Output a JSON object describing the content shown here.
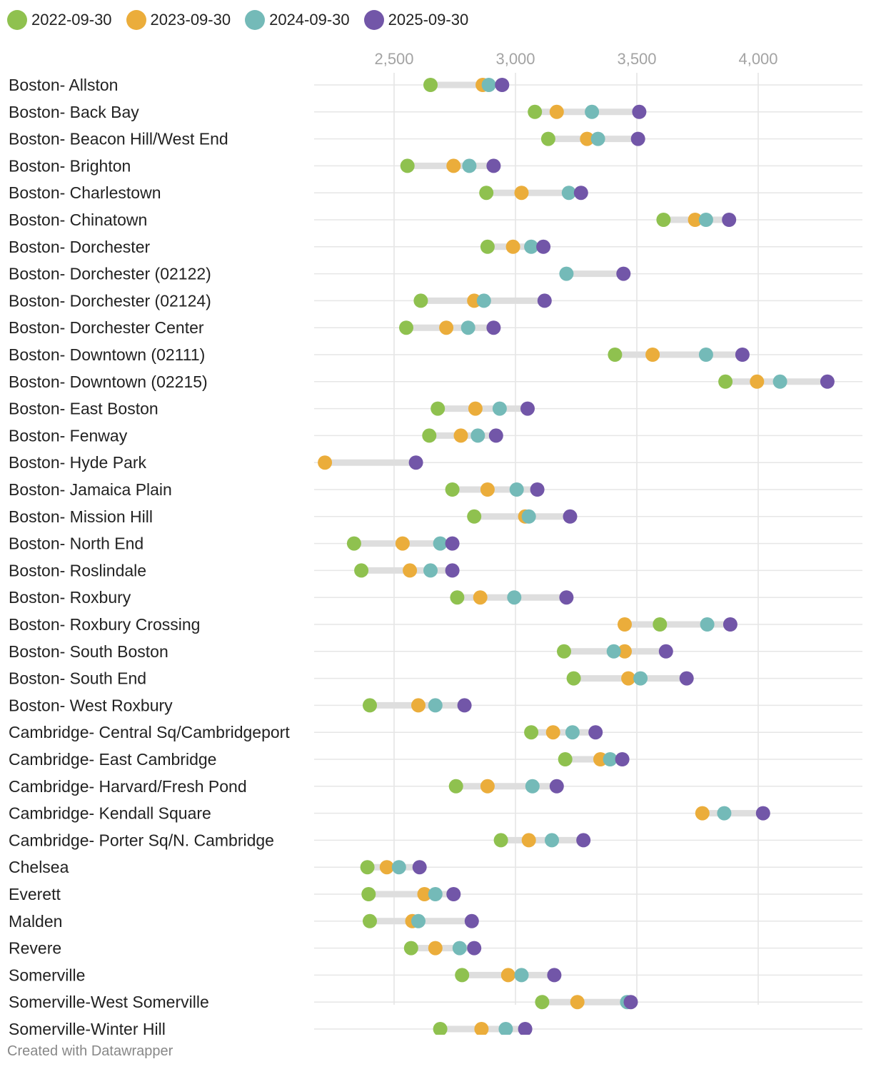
{
  "legend": [
    "2022-09-30",
    "2023-09-30",
    "2024-09-30",
    "2025-09-30"
  ],
  "colors": {
    "2022-09-30": "#8fc14f",
    "2023-09-30": "#ebad3b",
    "2024-09-30": "#74bab8",
    "2025-09-30": "#7256a8"
  },
  "footer": "Created with Datawrapper",
  "chart_data": {
    "type": "range-dot",
    "title": "",
    "xlabel": "",
    "ylabel": "",
    "xlim": [
      2170,
      4425
    ],
    "ticks": [
      2500,
      3000,
      3500,
      4000
    ],
    "tick_labels": [
      "2,500",
      "3,000",
      "3,500",
      "4,000"
    ],
    "series_names": [
      "2022-09-30",
      "2023-09-30",
      "2024-09-30",
      "2025-09-30"
    ],
    "categories": [
      "Boston- Allston",
      "Boston- Back Bay",
      "Boston- Beacon Hill/West End",
      "Boston- Brighton",
      "Boston- Charlestown",
      "Boston- Chinatown",
      "Boston- Dorchester",
      "Boston- Dorchester (02122)",
      "Boston- Dorchester (02124)",
      "Boston- Dorchester Center",
      "Boston- Downtown (02111)",
      "Boston- Downtown (02215)",
      "Boston- East Boston",
      "Boston- Fenway",
      "Boston- Hyde Park",
      "Boston- Jamaica Plain",
      "Boston- Mission Hill",
      "Boston- North End",
      "Boston- Roslindale",
      "Boston- Roxbury",
      "Boston- Roxbury Crossing",
      "Boston- South Boston",
      "Boston- South End",
      "Boston- West Roxbury",
      "Cambridge- Central Sq/Cambridgeport",
      "Cambridge- East Cambridge",
      "Cambridge- Harvard/Fresh Pond",
      "Cambridge- Kendall Square",
      "Cambridge- Porter Sq/N. Cambridge",
      "Chelsea",
      "Everett",
      "Malden",
      "Revere",
      "Somerville",
      "Somerville-West Somerville",
      "Somerville-Winter Hill"
    ],
    "values": [
      [
        2650,
        2865,
        2890,
        2945
      ],
      [
        3080,
        3170,
        3315,
        3510
      ],
      [
        3135,
        3295,
        3340,
        3505
      ],
      [
        2555,
        2745,
        2810,
        2910
      ],
      [
        2880,
        3025,
        3220,
        3270
      ],
      [
        3610,
        3740,
        3785,
        3880
      ],
      [
        2885,
        2990,
        3065,
        3115
      ],
      [
        null,
        null,
        3210,
        3445
      ],
      [
        2610,
        2830,
        2870,
        3120
      ],
      [
        2550,
        2715,
        2805,
        2910
      ],
      [
        3410,
        3565,
        3785,
        3935
      ],
      [
        3865,
        3995,
        4090,
        4285
      ],
      [
        2680,
        2835,
        2935,
        3050
      ],
      [
        2645,
        2775,
        2845,
        2920
      ],
      [
        null,
        2215,
        null,
        2590
      ],
      [
        2740,
        2885,
        3005,
        3090
      ],
      [
        2830,
        3040,
        3055,
        3225
      ],
      [
        2335,
        2535,
        2690,
        2740
      ],
      [
        2365,
        2565,
        2650,
        2740
      ],
      [
        2760,
        2855,
        2995,
        3210
      ],
      [
        3595,
        3450,
        3790,
        3885
      ],
      [
        3200,
        3450,
        3405,
        3620
      ],
      [
        3240,
        3465,
        3515,
        3705
      ],
      [
        2400,
        2600,
        2670,
        2790
      ],
      [
        3065,
        3155,
        3235,
        3330
      ],
      [
        3205,
        3350,
        3390,
        3440
      ],
      [
        2755,
        2885,
        3070,
        3170
      ],
      [
        null,
        3770,
        3860,
        4020
      ],
      [
        2940,
        3055,
        3150,
        3280
      ],
      [
        2390,
        2470,
        2520,
        2605
      ],
      [
        2395,
        2625,
        2670,
        2745
      ],
      [
        2400,
        2575,
        2600,
        2820
      ],
      [
        2570,
        2670,
        2770,
        2830
      ],
      [
        2780,
        2970,
        3025,
        3160
      ],
      [
        3110,
        3255,
        3460,
        3475
      ],
      [
        2690,
        2860,
        2960,
        3040
      ]
    ]
  }
}
